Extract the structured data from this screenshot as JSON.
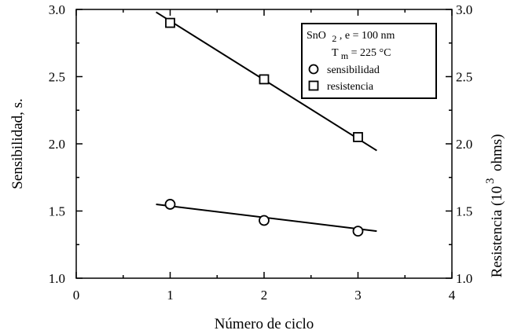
{
  "chart_data": {
    "type": "scatter",
    "xlabel": "Número de ciclo",
    "ylabel_left": "Sensibilidad, s.",
    "ylabel_right": "Resistencia (10",
    "ylabel_right_exp": "3",
    "ylabel_right_unit": "ohms)",
    "xlim": [
      0,
      4
    ],
    "ylim": [
      1.0,
      3.0
    ],
    "xticks": [
      "0",
      "1",
      "2",
      "3",
      "4"
    ],
    "yticks_left": [
      "1.0",
      "1.5",
      "2.0",
      "2.5",
      "3.0"
    ],
    "yticks_right": [
      "1.0",
      "1.5",
      "2.0",
      "2.5",
      "3.0"
    ],
    "grid": false,
    "legend_position": "top-right",
    "legend": {
      "line1_a": "SnO",
      "line1_sub": "2",
      "line1_b": ", e = 100 nm",
      "line2_a": "T",
      "line2_sub": "m",
      "line2_b": " = 225 °C",
      "entry1": "sensibilidad",
      "entry2": "resistencia"
    },
    "series": [
      {
        "name": "sensibilidad",
        "marker": "circle",
        "x": [
          1,
          2,
          3
        ],
        "y": [
          1.55,
          1.43,
          1.35
        ],
        "fit": {
          "x": [
            0.85,
            3.2
          ],
          "y": [
            1.55,
            1.35
          ]
        }
      },
      {
        "name": "resistencia",
        "marker": "square",
        "x": [
          1,
          2,
          3
        ],
        "y": [
          2.9,
          2.48,
          2.05
        ],
        "fit": {
          "x": [
            0.85,
            3.2
          ],
          "y": [
            2.98,
            1.95
          ]
        }
      }
    ]
  }
}
